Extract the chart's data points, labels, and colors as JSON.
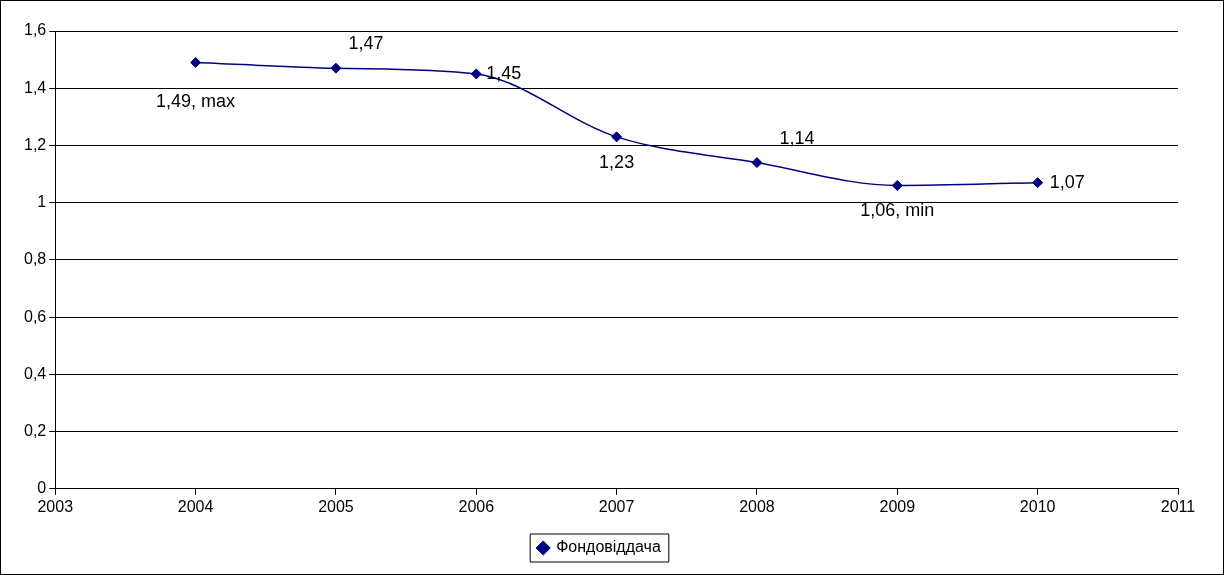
{
  "chart_data": {
    "type": "line",
    "x": [
      2004,
      2005,
      2006,
      2007,
      2008,
      2009,
      2010
    ],
    "series": [
      {
        "name": "Фондовіддача",
        "color": "#000080",
        "values": [
          1.49,
          1.47,
          1.45,
          1.23,
          1.14,
          1.06,
          1.07
        ],
        "value_labels": [
          "1,49, max",
          "1,47",
          "1,45",
          "1,23",
          "1,14",
          "1,06, min",
          "1,07"
        ]
      }
    ],
    "xlim": [
      2003,
      2011
    ],
    "xticks": [
      2003,
      2004,
      2005,
      2006,
      2007,
      2008,
      2009,
      2010,
      2011
    ],
    "ylim": [
      0,
      1.6
    ],
    "yticks": [
      0,
      {
        "value": 0.2,
        "label": "0,2"
      },
      {
        "value": 0.4,
        "label": "0,4"
      },
      {
        "value": 0.6,
        "label": "0,6"
      },
      {
        "value": 0.8,
        "label": "0,8"
      },
      1,
      {
        "value": 1.2,
        "label": "1,2"
      },
      {
        "value": 1.4,
        "label": "1,4"
      },
      {
        "value": 1.6,
        "label": "1,6"
      }
    ],
    "grid": "y",
    "legend": "bottom",
    "marker": "diamond",
    "line_style": "solid"
  }
}
